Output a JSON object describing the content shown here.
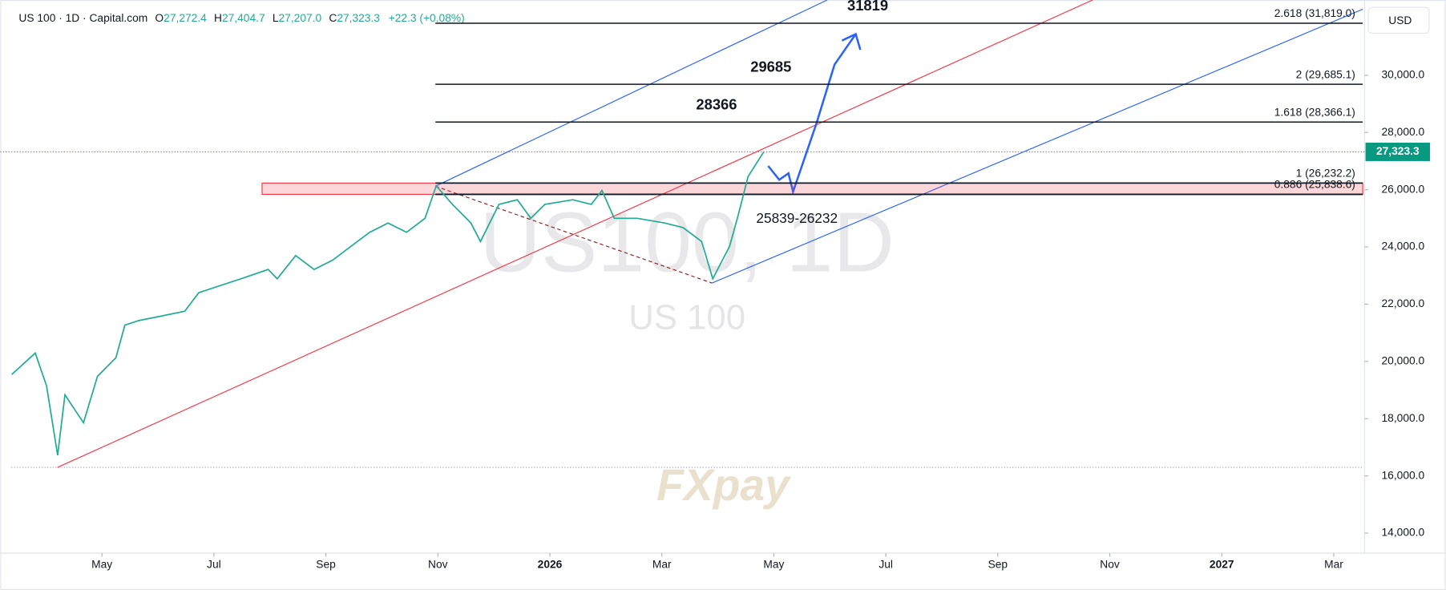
{
  "header": {
    "symbol": "US 100 · 1D · Capital.com",
    "ohlc": [
      {
        "key": "O",
        "value": "27,272.4"
      },
      {
        "key": "H",
        "value": "27,404.7"
      },
      {
        "key": "L",
        "value": "27,207.0"
      },
      {
        "key": "C",
        "value": "27,323.3"
      }
    ],
    "change": "+22.3 (+0.08%)"
  },
  "chart_data": {
    "type": "line",
    "currency": "USD",
    "watermark": "US100, 1D",
    "watermark_sub": "US 100",
    "logo": "FXpay",
    "series": [
      {
        "name": "US 100",
        "color": "#22ab94",
        "x": [
          -0.61,
          -0.19,
          0.01,
          0.21,
          0.34,
          0.67,
          0.92,
          1.25,
          1.41,
          1.66,
          2.07,
          2.48,
          2.73,
          2.98,
          3.48,
          3.97,
          4.13,
          4.46,
          4.79,
          5.12,
          5.45,
          5.78,
          6.11,
          6.44,
          6.77,
          6.97,
          7.26,
          7.59,
          7.76,
          8.09,
          8.42,
          8.66,
          8.91,
          9.41,
          9.74,
          9.93,
          10.15,
          10.56,
          11.05,
          11.38,
          11.71,
          11.91,
          12.21,
          12.37,
          12.54,
          12.82
        ],
        "values": [
          19545,
          20291,
          19155,
          16720,
          18830,
          17856,
          19480,
          20129,
          21266,
          21428,
          21590,
          21753,
          22402,
          22564,
          22889,
          23214,
          22889,
          23701,
          23214,
          23538,
          24026,
          24513,
          24837,
          24513,
          25000,
          26136,
          25487,
          24837,
          24188,
          25487,
          25649,
          25000,
          25487,
          25649,
          25487,
          25974,
          25000,
          25000,
          24837,
          24675,
          24188,
          22889,
          24026,
          25162,
          26461,
          27323.3
        ]
      }
    ],
    "last_price": {
      "value": 27323.3,
      "label": "27,323.3"
    },
    "levels": [
      {
        "value": 31819,
        "label": "2.618 (31,819.0)",
        "target": true
      },
      {
        "value": 29685,
        "label": "2 (29,685.1)",
        "target": true
      },
      {
        "value": 28366,
        "label": "1.618 (28,366.1)",
        "target": true
      },
      {
        "value": 26232.2,
        "label": "1 (26,232.2)",
        "target": false
      },
      {
        "value": 25838.6,
        "label": "0.886 (25,838.6)",
        "target": false
      }
    ],
    "zone_label": "25839-26232",
    "xlim": [
      -0.65,
      23.55
    ],
    "ylim": [
      13300,
      32630
    ],
    "xticks": [
      {
        "value": 1,
        "label": "May"
      },
      {
        "value": 3,
        "label": "Jul"
      },
      {
        "value": 5,
        "label": "Sep"
      },
      {
        "value": 7,
        "label": "Nov"
      },
      {
        "value": 9,
        "label": "2026"
      },
      {
        "value": 11,
        "label": "Mar"
      },
      {
        "value": 13,
        "label": "May"
      },
      {
        "value": 15,
        "label": "Jul"
      },
      {
        "value": 17,
        "label": "Sep"
      },
      {
        "value": 19,
        "label": "Nov"
      },
      {
        "value": 21,
        "label": "2027"
      },
      {
        "value": 23,
        "label": "Mar"
      }
    ],
    "yticks": [
      {
        "value": 14000,
        "label": "14,000.0"
      },
      {
        "value": 16000,
        "label": "16,000.0"
      },
      {
        "value": 18000,
        "label": "18,000.0"
      },
      {
        "value": 20000,
        "label": "20,000.0"
      },
      {
        "value": 22000,
        "label": "22,000.0"
      },
      {
        "value": 24000,
        "label": "24,000.0"
      },
      {
        "value": 26000,
        "label": "26,000.0"
      },
      {
        "value": 28000,
        "label": "28,000.0"
      },
      {
        "value": 30000,
        "label": "30,000.0"
      }
    ]
  }
}
